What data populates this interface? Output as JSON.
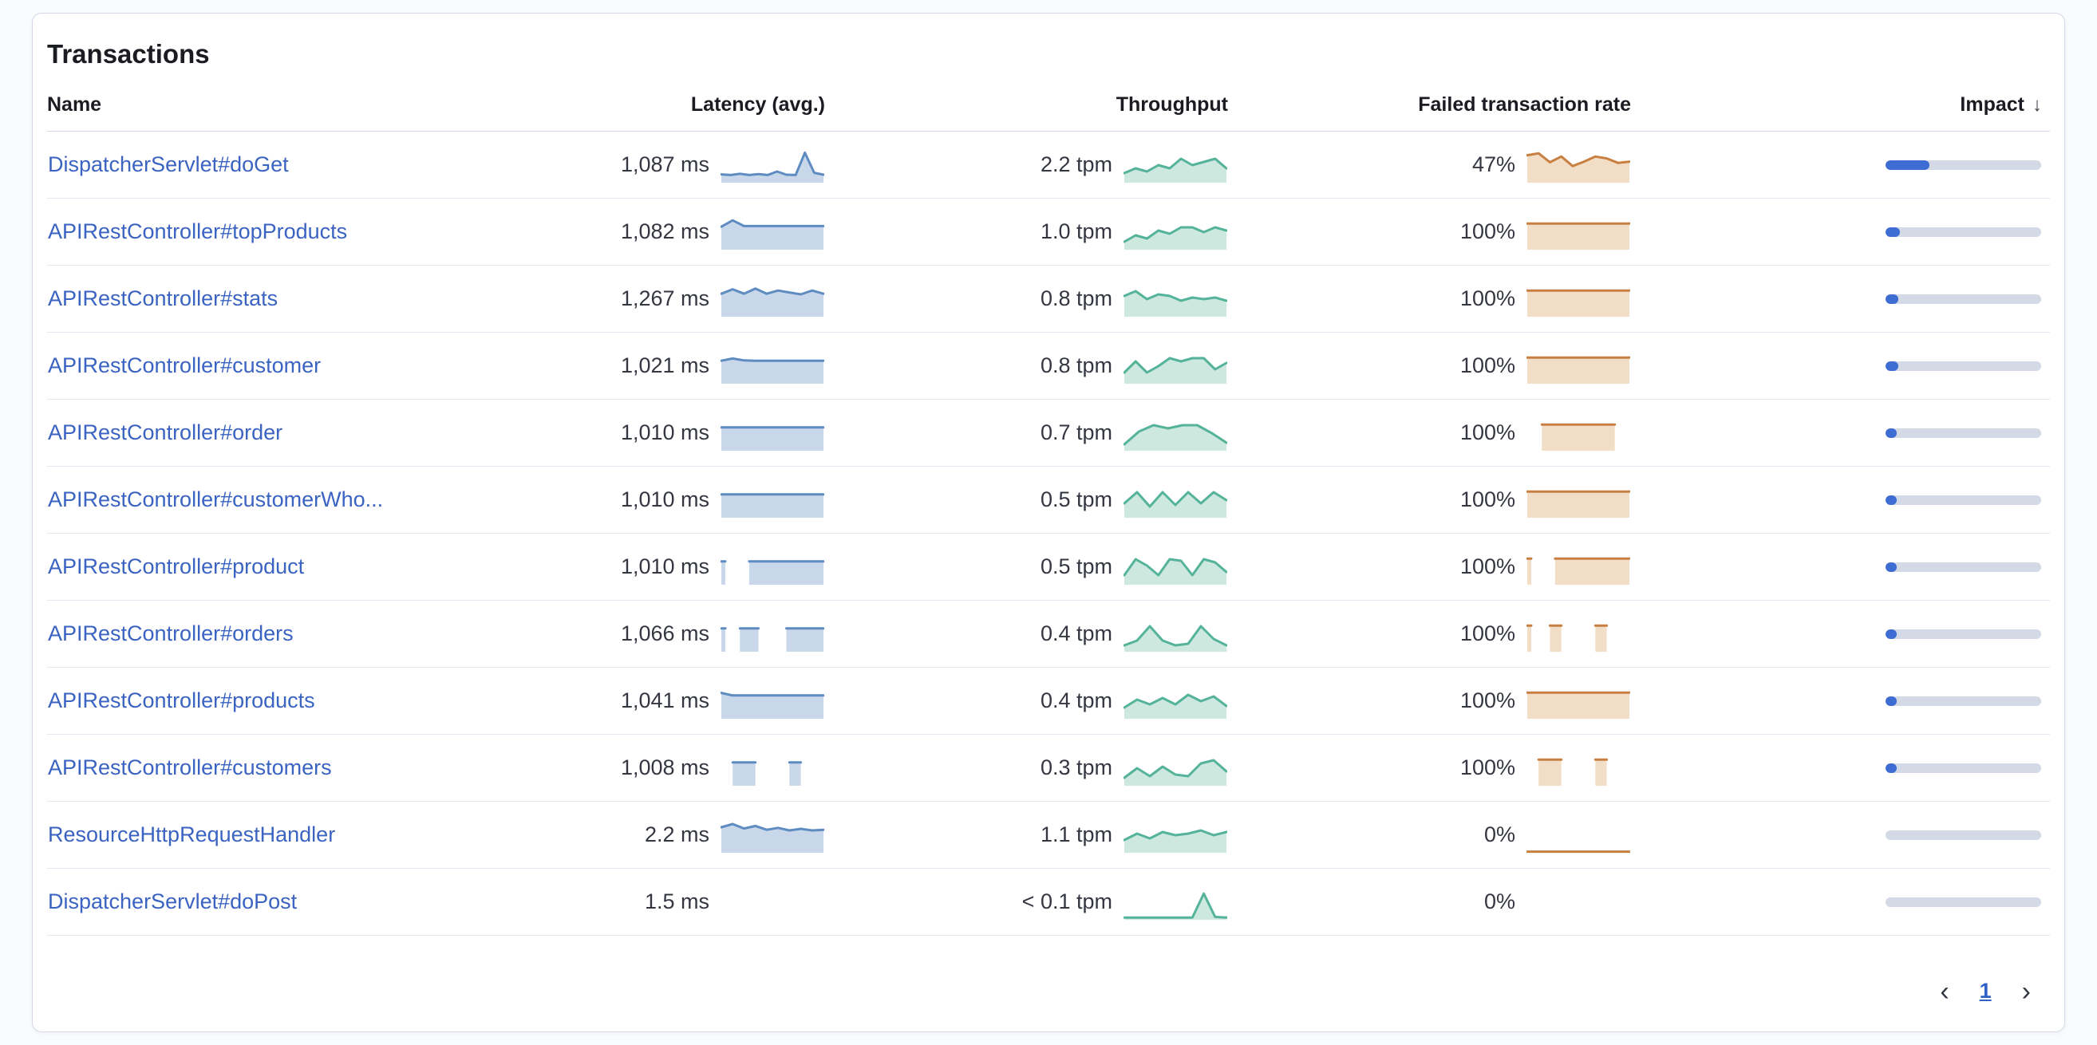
{
  "panel": {
    "title": "Transactions"
  },
  "table": {
    "sort_icon": "↓",
    "columns": [
      {
        "key": "name",
        "label": "Name"
      },
      {
        "key": "latency",
        "label": "Latency (avg.)"
      },
      {
        "key": "throughput",
        "label": "Throughput"
      },
      {
        "key": "failed",
        "label": "Failed transaction rate"
      },
      {
        "key": "impact",
        "label": "Impact",
        "sorted": "desc"
      }
    ],
    "rows": [
      {
        "name": "DispatcherServlet#doGet",
        "latency": "1,087 ms",
        "throughput": "2.2 tpm",
        "failed_rate": "47%",
        "impact_pct": 28,
        "latency_spark": [
          2.6,
          2.4,
          2.8,
          2.4,
          2.7,
          2.4,
          3.5,
          2.5,
          2.4,
          9.4,
          3.1,
          2.5
        ],
        "throughput_spark": [
          3,
          4.5,
          3.5,
          5.5,
          4.5,
          7.5,
          5.5,
          6.5,
          7.5,
          4.5
        ],
        "failed_spark": [
          8.6,
          9.2,
          6.4,
          8.2,
          5.2,
          6.6,
          8.2,
          7.6,
          6.2,
          6.6
        ]
      },
      {
        "name": "APIRestController#topProducts",
        "latency": "1,082 ms",
        "throughput": "1.0 tpm",
        "failed_rate": "100%",
        "impact_pct": 9,
        "latency_spark": [
          7.2,
          9.2,
          7.4,
          7.4,
          7.4,
          7.4,
          7.4,
          7.4,
          7.4,
          7.4
        ],
        "throughput_spark": [
          2.5,
          4.5,
          3.5,
          6,
          5,
          7,
          7,
          5.5,
          7,
          6
        ],
        "failed_spark": [
          8.2,
          8.2,
          8.2,
          8.2,
          8.2,
          8.2,
          8.2,
          8.2
        ]
      },
      {
        "name": "APIRestController#stats",
        "latency": "1,267 ms",
        "throughput": "0.8 tpm",
        "failed_rate": "100%",
        "impact_pct": 8,
        "latency_spark": [
          7.2,
          8.6,
          7.2,
          8.8,
          7.2,
          8.2,
          7.6,
          7,
          8.2,
          7.2
        ],
        "throughput_spark": [
          6.5,
          8,
          5.5,
          7,
          6.5,
          5,
          6,
          5.5,
          6,
          5
        ],
        "failed_spark": [
          8.2,
          8.2,
          8.2,
          8.2,
          8.2,
          8.2,
          8.2,
          8.2
        ]
      },
      {
        "name": "APIRestController#customer",
        "latency": "1,021 ms",
        "throughput": "0.8 tpm",
        "failed_rate": "100%",
        "impact_pct": 8,
        "latency_spark": [
          7.2,
          7.9,
          7.3,
          7.2,
          7.2,
          7.2,
          7.2,
          7.2,
          7.2,
          7.2
        ],
        "throughput_spark": [
          3.5,
          7,
          3.5,
          5.5,
          8,
          7,
          8,
          8,
          4.5,
          6.5
        ],
        "failed_spark": [
          8.2,
          8.2,
          8.2,
          8.2,
          8.2,
          8.2,
          8.2,
          8.2
        ]
      },
      {
        "name": "APIRestController#order",
        "latency": "1,010 ms",
        "throughput": "0.7 tpm",
        "failed_rate": "100%",
        "impact_pct": 6,
        "latency_spark": [
          7.3,
          7.3,
          7.3,
          7.3,
          7.3,
          7.3,
          7.3,
          7.3
        ],
        "throughput_spark": [
          2,
          6,
          8,
          7,
          8,
          8,
          5.5,
          2.5
        ],
        "failed_spark": [
          null,
          8.2,
          8.2,
          8.2,
          8.2,
          8.2,
          8.2,
          null
        ]
      },
      {
        "name": "APIRestController#customerWho...",
        "latency": "1,010 ms",
        "throughput": "0.5 tpm",
        "failed_rate": "100%",
        "impact_pct": 5,
        "latency_spark": [
          7.3,
          7.3,
          7.3,
          7.3,
          7.3,
          7.3,
          7.3,
          7.3
        ],
        "throughput_spark": [
          4.5,
          8,
          3.5,
          8,
          4,
          8,
          4.5,
          8,
          5.5
        ],
        "failed_spark": [
          8.2,
          8.2,
          8.2,
          8.2,
          8.2,
          8.2,
          8.2,
          8.2
        ]
      },
      {
        "name": "APIRestController#product",
        "latency": "1,010 ms",
        "throughput": "0.5 tpm",
        "failed_rate": "100%",
        "impact_pct": 5,
        "latency_spark": [
          7.3,
          null,
          null,
          7.3,
          7.3,
          7.3,
          7.3,
          7.3,
          7.3,
          7.3,
          7.3,
          7.3
        ],
        "throughput_spark": [
          3,
          8,
          6,
          3,
          8,
          7.5,
          3,
          8,
          7,
          4
        ],
        "failed_spark": [
          8.2,
          null,
          null,
          8.2,
          8.2,
          8.2,
          8.2,
          8.2,
          8.2,
          8.2,
          8.2,
          8.2
        ]
      },
      {
        "name": "APIRestController#orders",
        "latency": "1,066 ms",
        "throughput": "0.4 tpm",
        "failed_rate": "100%",
        "impact_pct": 5,
        "latency_spark": [
          7.3,
          null,
          7.3,
          7.3,
          7.3,
          null,
          null,
          7.3,
          7.3,
          7.3,
          7.3,
          7.3
        ],
        "throughput_spark": [
          2,
          3.5,
          8,
          3.5,
          2,
          2.5,
          8,
          4,
          2
        ],
        "failed_spark": [
          8.2,
          null,
          8.2,
          8.2,
          null,
          null,
          8.2,
          8.2,
          null,
          null
        ]
      },
      {
        "name": "APIRestController#products",
        "latency": "1,041 ms",
        "throughput": "0.4 tpm",
        "failed_rate": "100%",
        "impact_pct": 4,
        "latency_spark": [
          8.1,
          7.3,
          7.3,
          7.3,
          7.3,
          7.3,
          7.3,
          7.3,
          7.3,
          7.3
        ],
        "throughput_spark": [
          3.5,
          6,
          4.5,
          6.5,
          4.5,
          7.5,
          5.5,
          7,
          4
        ],
        "failed_spark": [
          8.2,
          8.2,
          8.2,
          8.2,
          8.2,
          8.2,
          8.2,
          8.2
        ]
      },
      {
        "name": "APIRestController#customers",
        "latency": "1,008 ms",
        "throughput": "0.3 tpm",
        "failed_rate": "100%",
        "impact_pct": 4,
        "latency_spark": [
          null,
          7.3,
          7.3,
          7.3,
          null,
          null,
          7.3,
          7.3,
          null,
          null
        ],
        "throughput_spark": [
          2.5,
          5.5,
          3,
          6,
          3.5,
          3,
          7,
          8,
          4.5
        ],
        "failed_spark": [
          null,
          8.2,
          8.2,
          8.2,
          null,
          null,
          8.2,
          8.2,
          null,
          null
        ]
      },
      {
        "name": "ResourceHttpRequestHandler",
        "latency": "2.2 ms",
        "throughput": "1.1 tpm",
        "failed_rate": "0%",
        "impact_pct": 0,
        "latency_spark": [
          8,
          9,
          7.6,
          8.4,
          7.2,
          7.8,
          7,
          7.5,
          7,
          7.2
        ],
        "throughput_spark": [
          4,
          6,
          4.5,
          6.5,
          5.5,
          6,
          7,
          5.5,
          6.5
        ],
        "failed_spark": [
          0.35,
          0.35,
          0.35,
          0.35,
          0.35,
          0.35,
          0.35,
          0.35
        ]
      },
      {
        "name": "DispatcherServlet#doPost",
        "latency": "1.5 ms",
        "throughput": "< 0.1 tpm",
        "failed_rate": "0%",
        "impact_pct": 0,
        "latency_spark": [],
        "throughput_spark": [
          0.7,
          0.7,
          0.7,
          0.7,
          0.7,
          0.7,
          0.7,
          8.2,
          0.9,
          0.7
        ],
        "failed_spark": []
      }
    ]
  },
  "pagination": {
    "prev_icon": "‹",
    "page": "1",
    "next_icon": "›"
  },
  "colors": {
    "link": "#3a63c2",
    "latency_line": "#5f8cc0",
    "latency_fill": "#c8d7ea",
    "throughput_line": "#54b399",
    "throughput_fill": "#cde8de",
    "failed_line": "#c87f42",
    "failed_fill": "#f2ddc6",
    "impact_fill": "#3d6dd2",
    "impact_track": "#d3dae6"
  }
}
